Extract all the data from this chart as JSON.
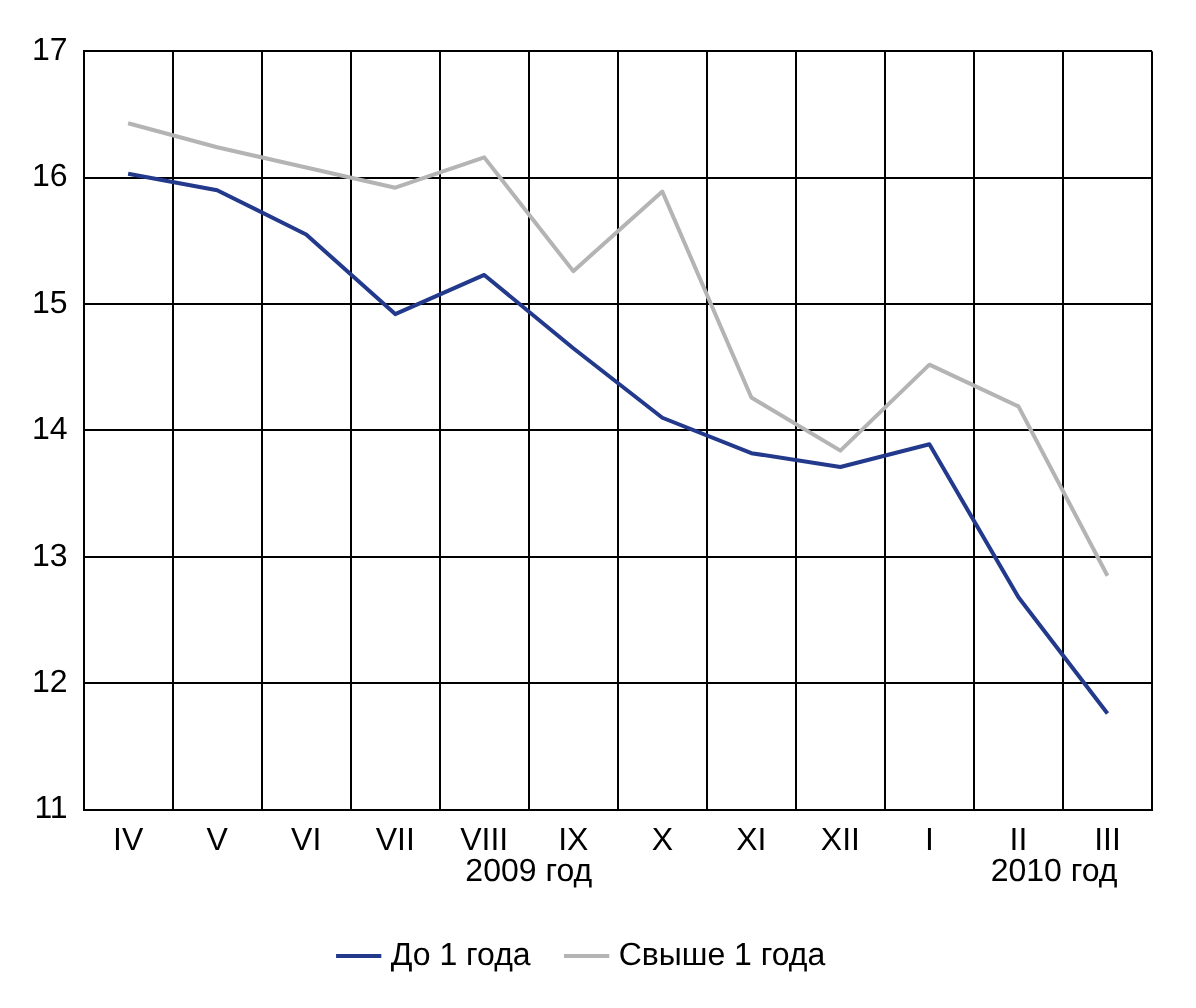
{
  "chart_data": {
    "type": "line",
    "categories": [
      "IV",
      "V",
      "VI",
      "VII",
      "VIII",
      "IX",
      "X",
      "XI",
      "XII",
      "I",
      "II",
      "III"
    ],
    "series": [
      {
        "name": "До 1 года",
        "color": "#233a8c",
        "values": [
          16.03,
          15.9,
          15.55,
          14.92,
          15.23,
          14.65,
          14.1,
          13.82,
          13.71,
          13.89,
          12.68,
          11.76
        ]
      },
      {
        "name": "Свыше 1 года",
        "color": "#b4b4b4",
        "values": [
          16.43,
          16.24,
          16.08,
          15.92,
          16.16,
          15.26,
          15.89,
          14.26,
          13.84,
          14.52,
          14.19,
          12.85
        ]
      }
    ],
    "ylim": [
      11,
      17
    ],
    "yticks": [
      11,
      12,
      13,
      14,
      15,
      16,
      17
    ],
    "grid": true,
    "legend": "bottom",
    "marker": "none",
    "line_style": "solid",
    "annotations": [
      "2009 год",
      "2010 год"
    ]
  }
}
